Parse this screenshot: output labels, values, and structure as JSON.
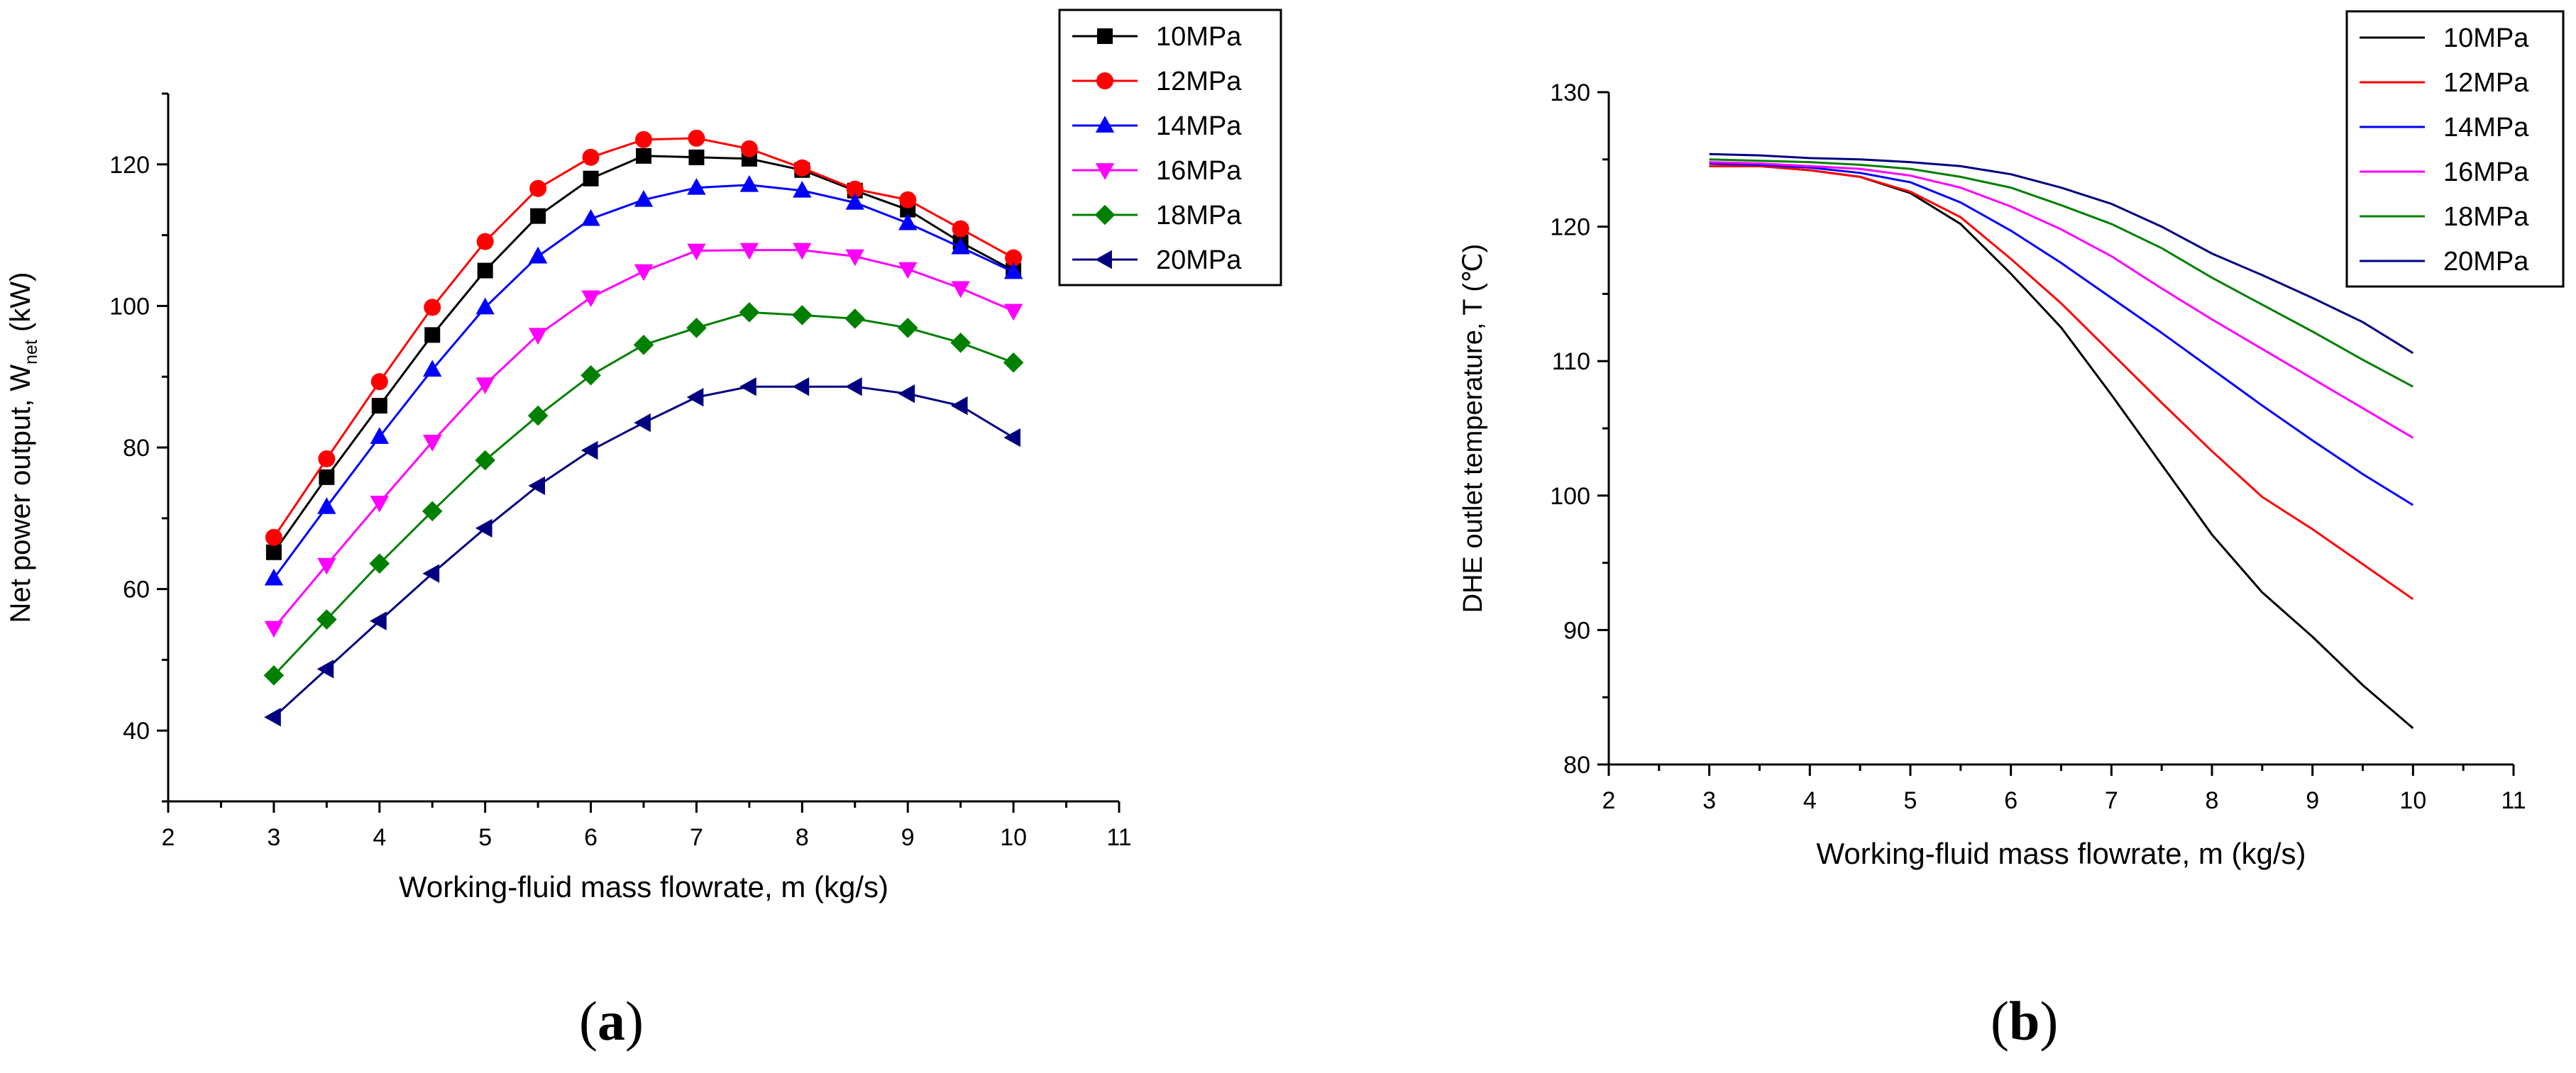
{
  "chart_data": [
    {
      "type": "line",
      "panel_label": "a",
      "xlabel": "Working-fluid mass flowrate, m (kg/s)",
      "ylabel": "Net power output, W",
      "ylabel_subscript": "net",
      "ylabel_unit": "(kW)",
      "xlim": [
        2,
        11
      ],
      "ylim": [
        30,
        130
      ],
      "xticks": [
        "2",
        "3",
        "4",
        "5",
        "6",
        "7",
        "8",
        "9",
        "10",
        "11"
      ],
      "yticks": [
        "40",
        "60",
        "80",
        "100",
        "120"
      ],
      "grid": false,
      "legend": "top-right",
      "x": [
        3,
        3.5,
        4,
        4.5,
        5,
        5.5,
        6,
        6.5,
        7,
        7.5,
        8,
        8.5,
        9,
        9.5,
        10
      ],
      "series": [
        {
          "name": "10MPa",
          "color": "#000000",
          "marker": "square",
          "values": [
            65.2,
            75.8,
            85.9,
            95.9,
            105.0,
            112.7,
            118.0,
            121.2,
            121.0,
            120.8,
            119.2,
            116.3,
            113.6,
            109.0,
            105.0
          ]
        },
        {
          "name": "12MPa",
          "color": "#ff0000",
          "marker": "circle",
          "values": [
            67.3,
            78.4,
            89.3,
            99.8,
            109.1,
            116.6,
            121.0,
            123.5,
            123.7,
            122.2,
            119.5,
            116.5,
            115.0,
            110.9,
            106.8
          ]
        },
        {
          "name": "14MPa",
          "color": "#0000ff",
          "marker": "triangle-up",
          "values": [
            61.5,
            71.6,
            81.5,
            91.0,
            99.8,
            107.0,
            112.3,
            115.0,
            116.7,
            117.1,
            116.3,
            114.6,
            111.7,
            108.3,
            104.8
          ]
        },
        {
          "name": "16MPa",
          "color": "#ff00ff",
          "marker": "triangle-down",
          "values": [
            54.5,
            63.4,
            72.2,
            80.8,
            88.9,
            95.9,
            101.2,
            104.9,
            107.8,
            107.9,
            107.9,
            107.0,
            105.2,
            102.5,
            99.3
          ]
        },
        {
          "name": "18MPa",
          "color": "#008000",
          "marker": "diamond",
          "values": [
            47.8,
            55.7,
            63.6,
            71.0,
            78.2,
            84.5,
            90.2,
            94.5,
            96.9,
            99.1,
            98.7,
            98.2,
            96.9,
            94.8,
            92.0
          ]
        },
        {
          "name": "20MPa",
          "color": "#000080",
          "marker": "triangle-left",
          "values": [
            41.9,
            48.7,
            55.5,
            62.2,
            68.6,
            74.6,
            79.6,
            83.5,
            87.1,
            88.6,
            88.6,
            88.6,
            87.6,
            85.9,
            81.4
          ]
        }
      ]
    },
    {
      "type": "line",
      "panel_label": "b",
      "xlabel": "Working-fluid mass flowrate, m (kg/s)",
      "ylabel": "DHE outlet temperature, T (℃)",
      "xlim": [
        2,
        11
      ],
      "ylim": [
        80,
        130
      ],
      "xticks": [
        "2",
        "3",
        "4",
        "5",
        "6",
        "7",
        "8",
        "9",
        "10",
        "11"
      ],
      "yticks": [
        "80",
        "90",
        "100",
        "110",
        "120",
        "130"
      ],
      "grid": false,
      "legend": "top-right",
      "x": [
        3,
        3.5,
        4,
        4.5,
        5,
        5.5,
        6,
        6.5,
        7,
        7.5,
        8,
        8.5,
        9,
        9.5,
        10
      ],
      "series": [
        {
          "name": "10MPa",
          "color": "#000000",
          "values": [
            124.5,
            124.5,
            124.2,
            123.7,
            122.5,
            120.2,
            116.5,
            112.5,
            107.5,
            102.3,
            97.1,
            92.8,
            89.5,
            85.9,
            82.7
          ]
        },
        {
          "name": "12MPa",
          "color": "#ff0000",
          "values": [
            124.5,
            124.5,
            124.2,
            123.7,
            122.6,
            120.7,
            117.6,
            114.3,
            110.6,
            106.9,
            103.3,
            99.9,
            97.5,
            94.9,
            92.3
          ]
        },
        {
          "name": "14MPa",
          "color": "#0000ff",
          "values": [
            124.7,
            124.6,
            124.4,
            124.0,
            123.3,
            121.8,
            119.7,
            117.3,
            114.7,
            112.1,
            109.4,
            106.7,
            104.1,
            101.6,
            99.3
          ]
        },
        {
          "name": "16MPa",
          "color": "#ff00ff",
          "values": [
            124.8,
            124.7,
            124.5,
            124.3,
            123.8,
            122.9,
            121.5,
            119.8,
            117.8,
            115.4,
            113.1,
            110.9,
            108.7,
            106.5,
            104.3
          ]
        },
        {
          "name": "18MPa",
          "color": "#008000",
          "values": [
            125.0,
            124.9,
            124.8,
            124.6,
            124.3,
            123.7,
            122.9,
            121.6,
            120.2,
            118.4,
            116.2,
            114.2,
            112.2,
            110.1,
            108.1
          ]
        },
        {
          "name": "20MPa",
          "color": "#000080",
          "values": [
            125.4,
            125.3,
            125.1,
            125.0,
            124.8,
            124.5,
            123.9,
            122.9,
            121.7,
            120.0,
            118.0,
            116.4,
            114.7,
            112.9,
            110.6
          ]
        }
      ]
    }
  ]
}
